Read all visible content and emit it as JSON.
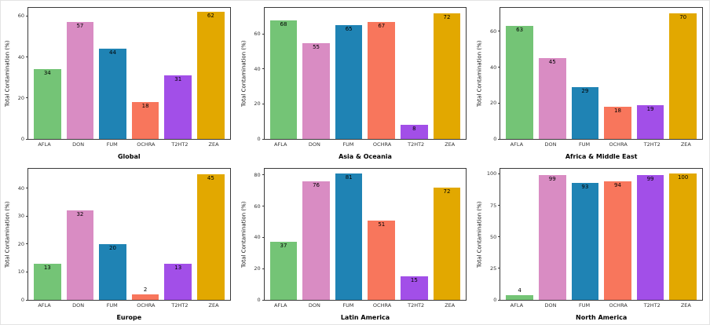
{
  "figure": {
    "ylabel": "Total Contamination (%)",
    "categories": [
      "AFLA",
      "DON",
      "FUM",
      "OCHRA",
      "T2HT2",
      "ZEA"
    ],
    "palette": {
      "AFLA": "#74C476",
      "DON": "#D98CC3",
      "FUM": "#1F83B4",
      "OCHRA": "#F8765C",
      "T2HT2": "#A24FE8",
      "ZEA": "#E2A800"
    },
    "text_color": "#000000",
    "panel_border_color": "#3a3a3a"
  },
  "chart_data": [
    {
      "type": "bar",
      "title": "Global",
      "categories": [
        "AFLA",
        "DON",
        "FUM",
        "OCHRA",
        "T2HT2",
        "ZEA"
      ],
      "values": [
        34,
        57,
        44,
        18,
        31,
        62
      ],
      "xlabel": "Global",
      "ylabel": "Total Contamination (%)",
      "yticks": [
        0,
        20,
        40,
        60
      ],
      "ylim": [
        0,
        64
      ],
      "grid": false,
      "legend": "none"
    },
    {
      "type": "bar",
      "title": "Asia & Oceania",
      "categories": [
        "AFLA",
        "DON",
        "FUM",
        "OCHRA",
        "T2HT2",
        "ZEA"
      ],
      "values": [
        68,
        55,
        65,
        67,
        8,
        72
      ],
      "xlabel": "Asia & Oceania",
      "ylabel": "Total Contamination (%)",
      "yticks": [
        0,
        20,
        40,
        60
      ],
      "ylim": [
        0,
        75
      ],
      "grid": false,
      "legend": "none"
    },
    {
      "type": "bar",
      "title": "Africa & Middle East",
      "categories": [
        "AFLA",
        "DON",
        "FUM",
        "OCHRA",
        "T2HT2",
        "ZEA"
      ],
      "values": [
        63,
        45,
        29,
        18,
        19,
        70
      ],
      "xlabel": "Africa & Middle East",
      "ylabel": "Total Contamination (%)",
      "yticks": [
        0,
        20,
        40,
        60
      ],
      "ylim": [
        0,
        73
      ],
      "grid": false,
      "legend": "none"
    },
    {
      "type": "bar",
      "title": "Europe",
      "categories": [
        "AFLA",
        "DON",
        "FUM",
        "OCHRA",
        "T2HT2",
        "ZEA"
      ],
      "values": [
        13,
        32,
        20,
        2,
        13,
        45
      ],
      "xlabel": "Europe",
      "ylabel": "Total Contamination (%)",
      "yticks": [
        0,
        10,
        20,
        30,
        40
      ],
      "ylim": [
        0,
        47
      ],
      "grid": false,
      "legend": "none"
    },
    {
      "type": "bar",
      "title": "Latin America",
      "categories": [
        "AFLA",
        "DON",
        "FUM",
        "OCHRA",
        "T2HT2",
        "ZEA"
      ],
      "values": [
        37,
        76,
        81,
        51,
        15,
        72
      ],
      "xlabel": "Latin America",
      "ylabel": "Total Contamination (%)",
      "yticks": [
        0,
        20,
        40,
        60,
        80
      ],
      "ylim": [
        0,
        84
      ],
      "grid": false,
      "legend": "none"
    },
    {
      "type": "bar",
      "title": "North America",
      "categories": [
        "AFLA",
        "DON",
        "FUM",
        "OCHRA",
        "T2HT2",
        "ZEA"
      ],
      "values": [
        4,
        99,
        93,
        94,
        99,
        100
      ],
      "xlabel": "North America",
      "ylabel": "Total Contamination (%)",
      "yticks": [
        0,
        25,
        50,
        75,
        100
      ],
      "ylim": [
        0,
        104
      ],
      "grid": false,
      "legend": "none"
    }
  ]
}
